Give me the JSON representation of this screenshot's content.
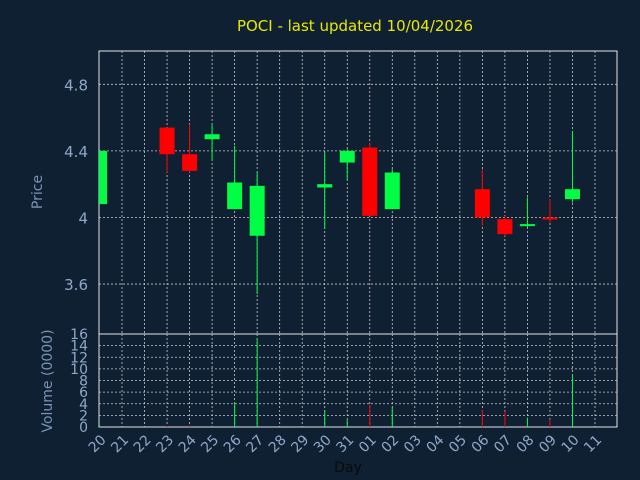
{
  "chart_data": {
    "type": "candlestick",
    "title": "POCI - last updated 10/04/2026",
    "xlabel": "Day",
    "price": {
      "ylabel": "Price",
      "ylim": [
        3.3,
        5.0
      ],
      "ticks": [
        "3.6",
        "4",
        "4.4",
        "4.8"
      ],
      "tick_values": [
        3.6,
        4.0,
        4.4,
        4.8
      ]
    },
    "volume": {
      "ylabel": "Volume (0000)",
      "ylim": [
        0,
        16
      ],
      "ticks": [
        "0",
        "2",
        "4",
        "6",
        "8",
        "10",
        "12",
        "14",
        "16"
      ],
      "tick_values": [
        0,
        2,
        4,
        6,
        8,
        10,
        12,
        14,
        16
      ]
    },
    "x_ticks": [
      "20",
      "21",
      "22",
      "23",
      "24",
      "25",
      "26",
      "27",
      "28",
      "29",
      "30",
      "31",
      "01",
      "02",
      "03",
      "04",
      "05",
      "06",
      "07",
      "08",
      "09",
      "10",
      "11"
    ],
    "candles": [
      {
        "day": "20",
        "open": 4.08,
        "high": 4.4,
        "low": 4.08,
        "close": 4.4,
        "volume": 0.3
      },
      {
        "day": "23",
        "open": 4.54,
        "high": 4.54,
        "low": 4.27,
        "close": 4.38,
        "volume": 0.2
      },
      {
        "day": "24",
        "open": 4.38,
        "high": 4.56,
        "low": 4.27,
        "close": 4.28,
        "volume": 0.3
      },
      {
        "day": "25",
        "open": 4.47,
        "high": 4.56,
        "low": 4.34,
        "close": 4.5,
        "volume": 0.2
      },
      {
        "day": "26",
        "open": 4.05,
        "high": 4.43,
        "low": 4.05,
        "close": 4.21,
        "volume": 4.2
      },
      {
        "day": "27",
        "open": 3.89,
        "high": 4.27,
        "low": 3.54,
        "close": 4.19,
        "volume": 15.2
      },
      {
        "day": "30",
        "open": 4.18,
        "high": 4.39,
        "low": 3.93,
        "close": 4.2,
        "volume": 2.8
      },
      {
        "day": "31",
        "open": 4.33,
        "high": 4.41,
        "low": 4.23,
        "close": 4.4,
        "volume": 1.2
      },
      {
        "day": "01",
        "open": 4.42,
        "high": 4.45,
        "low": 4.01,
        "close": 4.01,
        "volume": 3.8
      },
      {
        "day": "02",
        "open": 4.05,
        "high": 4.29,
        "low": 4.05,
        "close": 4.27,
        "volume": 3.3
      },
      {
        "day": "06",
        "open": 4.17,
        "high": 4.29,
        "low": 3.95,
        "close": 4.0,
        "volume": 2.9
      },
      {
        "day": "07",
        "open": 3.99,
        "high": 4.01,
        "low": 3.89,
        "close": 3.9,
        "volume": 2.7
      },
      {
        "day": "08",
        "open": 3.95,
        "high": 4.12,
        "low": 3.94,
        "close": 3.96,
        "volume": 1.6
      },
      {
        "day": "09",
        "open": 4.0,
        "high": 4.11,
        "low": 3.97,
        "close": 3.99,
        "volume": 1.3
      },
      {
        "day": "10",
        "open": 4.11,
        "high": 4.52,
        "low": 4.09,
        "close": 4.17,
        "volume": 8.9
      }
    ]
  },
  "colors": {
    "background": "#0f2033",
    "title": "#e8e800",
    "axis_text": "#8fa8c8",
    "axis_label": "#7a93b3",
    "up": "#00ff44",
    "down": "#ff0000",
    "grid": "#c8c8c8"
  }
}
